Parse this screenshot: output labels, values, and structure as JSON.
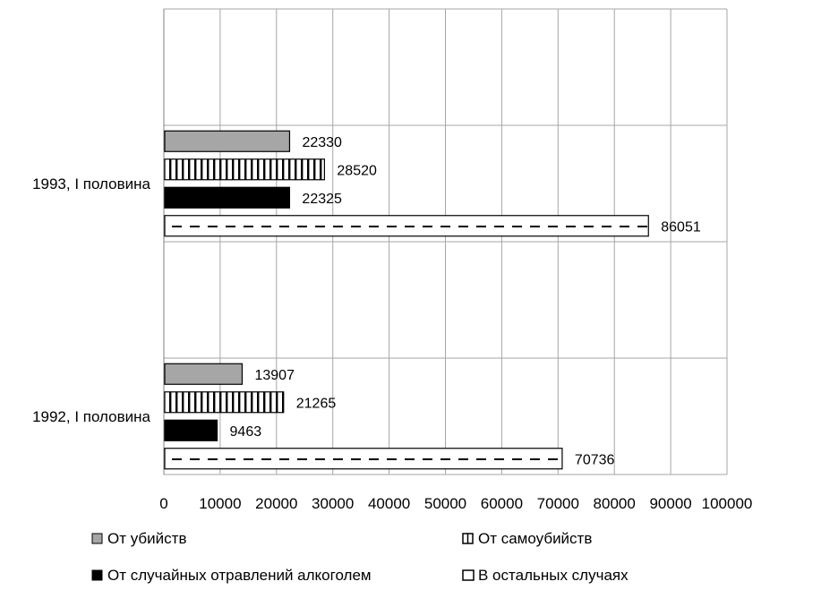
{
  "chart_data": {
    "type": "bar",
    "orientation": "horizontal",
    "categories": [
      "1993, I половина",
      "1992, I половина"
    ],
    "series": [
      {
        "name": "От убийств",
        "values": [
          22330,
          13907
        ],
        "pattern": "gray",
        "color": "#a6a6a6"
      },
      {
        "name": "От самоубийств",
        "values": [
          28520,
          21265
        ],
        "pattern": "vertical-stripes",
        "color": "#000000"
      },
      {
        "name": "От случайных отравлений алкоголем",
        "values": [
          22325,
          9463
        ],
        "pattern": "solid-black",
        "color": "#000000"
      },
      {
        "name": "В остальных случаях",
        "values": [
          86051,
          70736
        ],
        "pattern": "dashes",
        "color": "#000000"
      }
    ],
    "xlim": [
      0,
      100000
    ],
    "xticks": [
      "0",
      "10000",
      "20000",
      "30000",
      "40000",
      "50000",
      "60000",
      "70000",
      "80000",
      "90000",
      "100000"
    ],
    "grid": true,
    "legend_position": "bottom"
  }
}
